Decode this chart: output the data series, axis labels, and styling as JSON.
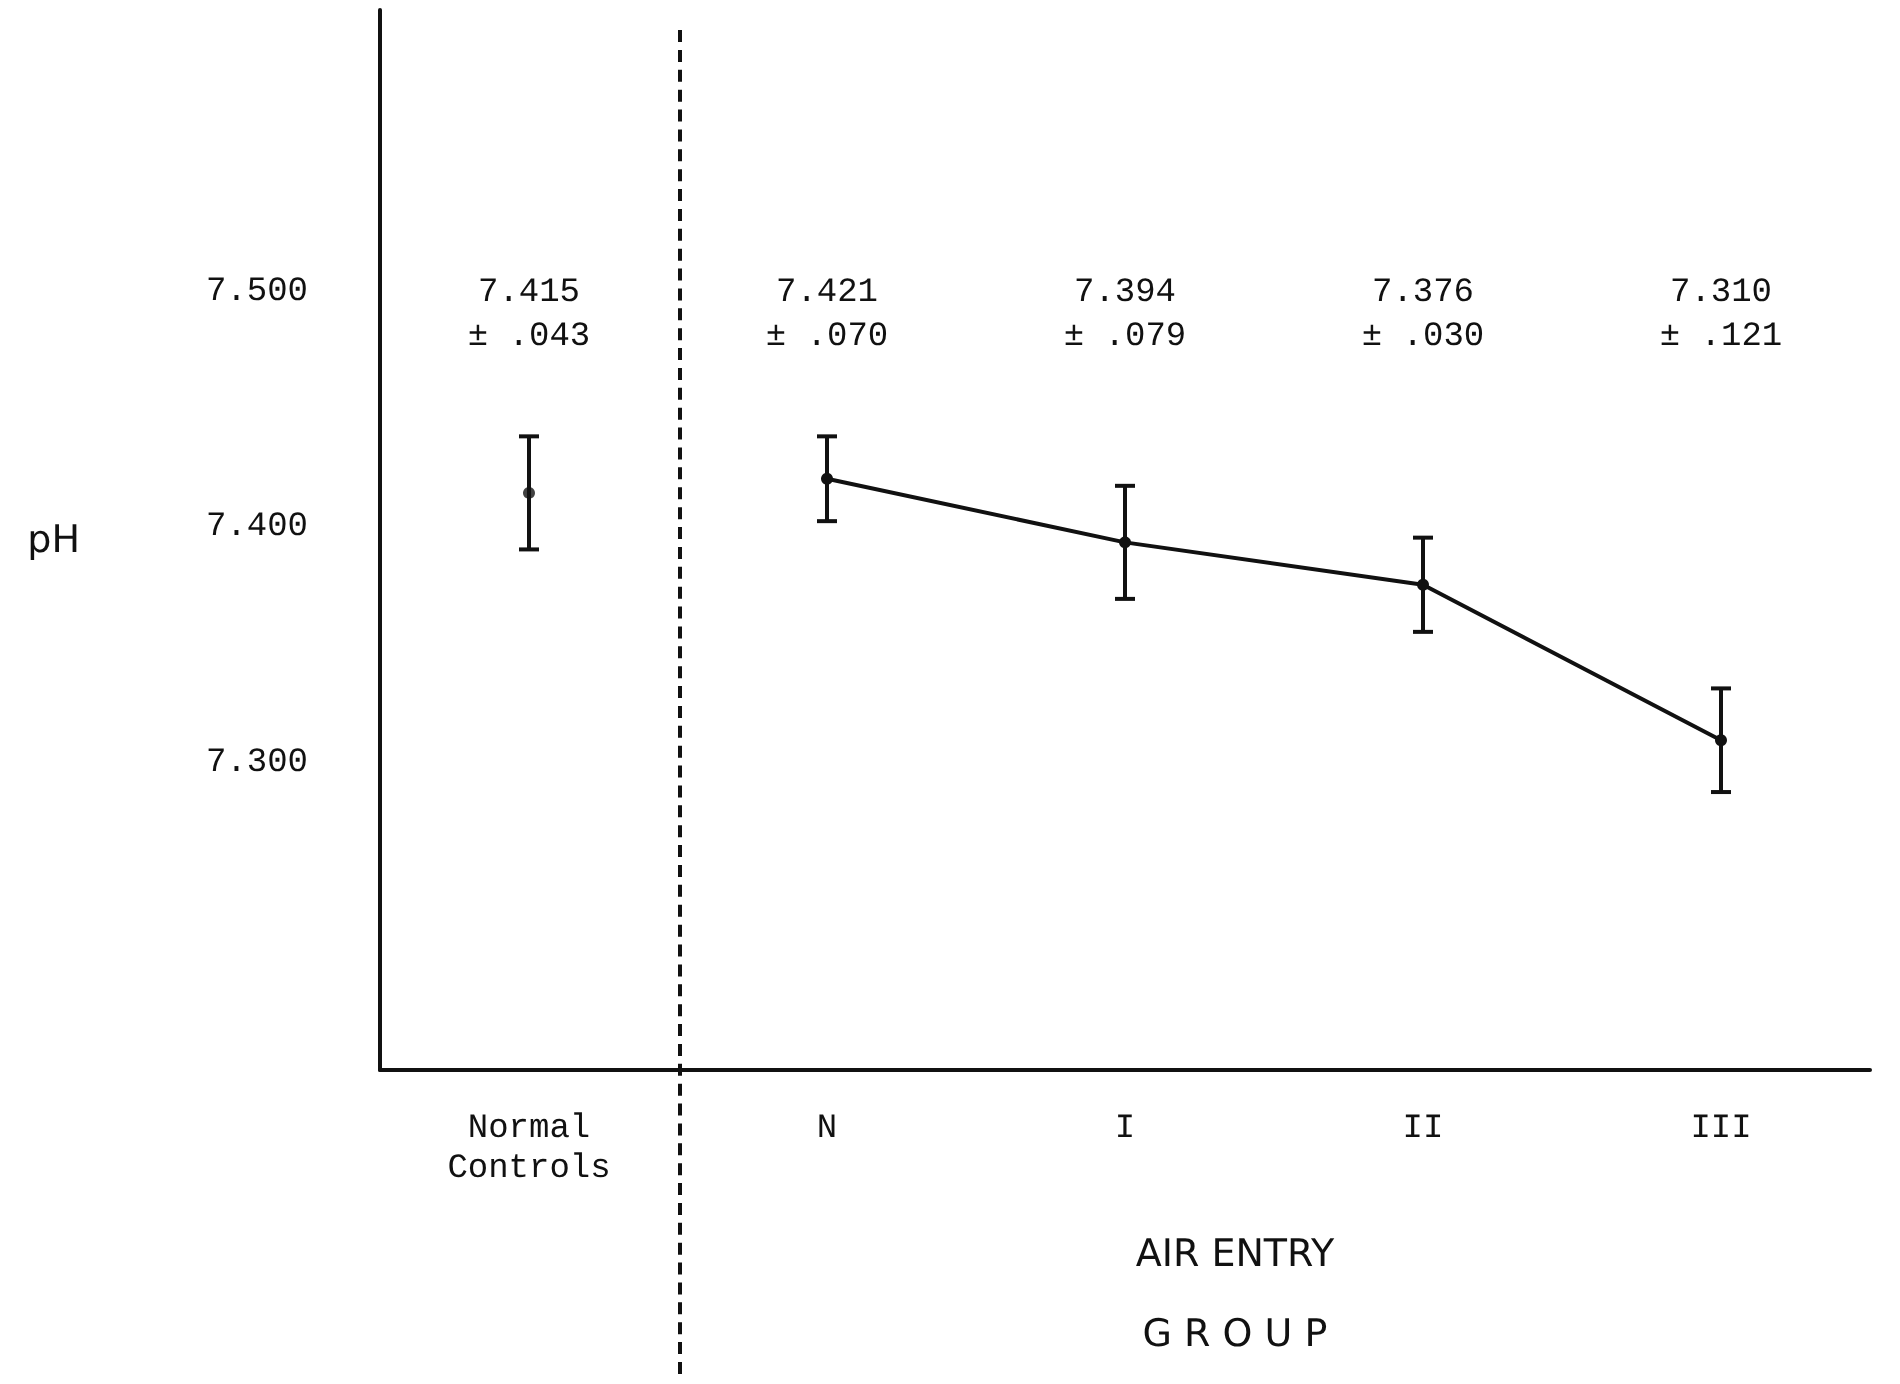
{
  "chart_data": {
    "type": "line",
    "ylabel": "pH",
    "xlabel": "AIR ENTRY\nG R O U P",
    "categories": [
      "Normal\nControls",
      "N",
      "I",
      "II",
      "III"
    ],
    "series": [
      {
        "type": "scatter",
        "color": "#111111",
        "values": [
          7.415,
          null,
          null,
          null,
          null
        ],
        "errors": [
          0.024,
          null,
          null,
          null,
          null
        ]
      },
      {
        "color": "#111111",
        "values": [
          null,
          7.421,
          7.394,
          7.376,
          7.31
        ],
        "errors": [
          null,
          0.018,
          0.024,
          0.02,
          0.022
        ]
      }
    ],
    "ylim": [
      7.17,
      7.62
    ],
    "yticks": [
      {
        "value": 7.3,
        "label": "7.300"
      },
      {
        "value": 7.4,
        "label": "7.400"
      },
      {
        "value": 7.5,
        "label": "7.500"
      }
    ],
    "marker": "circle",
    "line_style": "solid",
    "annotations": [
      "7.415\n± .043",
      "7.421\n± .070",
      "7.394\n± .079",
      "7.376\n± .030",
      "7.310\n± .121"
    ]
  }
}
